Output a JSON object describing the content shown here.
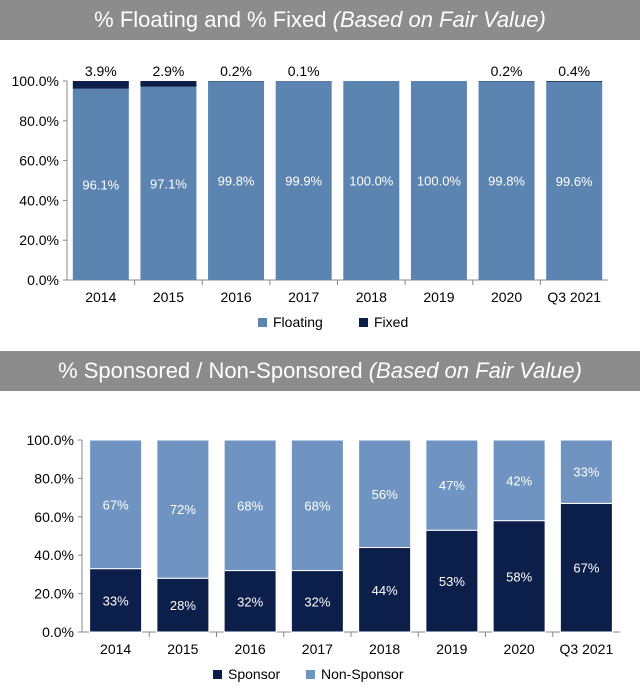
{
  "chart_data": [
    {
      "type": "bar",
      "stacked": true,
      "title": "% Floating and % Fixed",
      "title_suffix": "(Based on Fair Value)",
      "categories": [
        "2014",
        "2015",
        "2016",
        "2017",
        "2018",
        "2019",
        "2020",
        "Q3 2021"
      ],
      "series": [
        {
          "name": "Floating",
          "color": "#5b84b1",
          "values": [
            96.1,
            97.1,
            99.8,
            99.9,
            100.0,
            100.0,
            99.8,
            99.6
          ],
          "labels": [
            "96.1%",
            "97.1%",
            "99.8%",
            "99.9%",
            "100.0%",
            "100.0%",
            "99.8%",
            "99.6%"
          ]
        },
        {
          "name": "Fixed",
          "color": "#0c1e4a",
          "values": [
            3.9,
            2.9,
            0.2,
            0.1,
            0.0,
            0.0,
            0.2,
            0.4
          ],
          "labels": [
            "3.9%",
            "2.9%",
            "0.2%",
            "0.1%",
            "",
            "",
            "0.2%",
            "0.4%"
          ]
        }
      ],
      "ylim": [
        0,
        100
      ],
      "yticks": [
        "0.0%",
        "20.0%",
        "40.0%",
        "60.0%",
        "80.0%",
        "100.0%"
      ],
      "legend": "bottom"
    },
    {
      "type": "bar",
      "stacked": true,
      "title": "% Sponsored / Non-Sponsored",
      "title_suffix": "(Based on Fair Value)",
      "categories": [
        "2014",
        "2015",
        "2016",
        "2017",
        "2018",
        "2019",
        "2020",
        "Q3 2021"
      ],
      "series": [
        {
          "name": "Sponsor",
          "color": "#0c1e4a",
          "values": [
            33,
            28,
            32,
            32,
            44,
            53,
            58,
            67
          ],
          "labels": [
            "33%",
            "28%",
            "32%",
            "32%",
            "44%",
            "53%",
            "58%",
            "67%"
          ]
        },
        {
          "name": "Non-Sponsor",
          "color": "#6f94c2",
          "values": [
            67,
            72,
            68,
            68,
            56,
            47,
            42,
            33
          ],
          "labels": [
            "67%",
            "72%",
            "68%",
            "68%",
            "56%",
            "47%",
            "42%",
            "33%"
          ]
        }
      ],
      "ylim": [
        0,
        100
      ],
      "yticks": [
        "0.0%",
        "20.0%",
        "40.0%",
        "60.0%",
        "80.0%",
        "100.0%"
      ],
      "legend": "bottom"
    }
  ]
}
